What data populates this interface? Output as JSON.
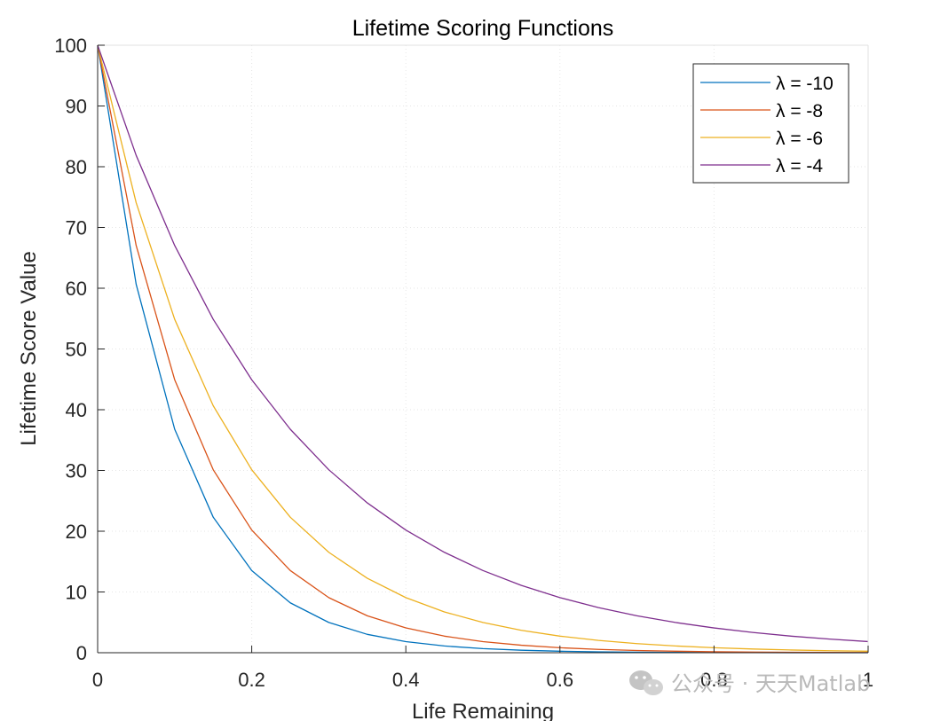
{
  "chart_data": {
    "type": "line",
    "title": "Lifetime Scoring Functions",
    "xlabel": "Life Remaining",
    "ylabel": "Lifetime Score Value",
    "xlim": [
      0,
      1
    ],
    "ylim": [
      0,
      100
    ],
    "xticks": [
      0,
      0.2,
      0.4,
      0.6,
      0.8,
      1
    ],
    "xtick_labels": [
      "0",
      "0.2",
      "0.4",
      "0.6",
      "0.8",
      "1"
    ],
    "yticks": [
      0,
      10,
      20,
      30,
      40,
      50,
      60,
      70,
      80,
      90,
      100
    ],
    "ytick_labels": [
      "0",
      "10",
      "20",
      "30",
      "40",
      "50",
      "60",
      "70",
      "80",
      "90",
      "100"
    ],
    "grid": true,
    "legend_position": "top-right",
    "x": [
      0,
      0.05,
      0.1,
      0.15,
      0.2,
      0.25,
      0.3,
      0.35,
      0.4,
      0.45,
      0.5,
      0.55,
      0.6,
      0.65,
      0.7,
      0.75,
      0.8,
      0.85,
      0.9,
      0.95,
      1
    ],
    "series": [
      {
        "name": "λ = -10",
        "color": "#0072BD",
        "values": [
          100,
          60.65,
          36.79,
          22.31,
          13.53,
          8.21,
          4.98,
          3.02,
          1.83,
          1.11,
          0.67,
          0.41,
          0.25,
          0.15,
          0.09,
          0.06,
          0.03,
          0.02,
          0.01,
          0.01,
          0.0
        ]
      },
      {
        "name": "λ = -8",
        "color": "#D95319",
        "values": [
          100,
          67.03,
          44.93,
          30.12,
          20.19,
          13.53,
          9.07,
          6.08,
          4.08,
          2.73,
          1.83,
          1.23,
          0.82,
          0.55,
          0.37,
          0.25,
          0.17,
          0.11,
          0.07,
          0.05,
          0.03
        ]
      },
      {
        "name": "λ = -6",
        "color": "#EDB120",
        "values": [
          100,
          74.08,
          54.88,
          40.66,
          30.12,
          22.31,
          16.53,
          12.25,
          9.07,
          6.72,
          4.98,
          3.69,
          2.73,
          2.02,
          1.5,
          1.11,
          0.82,
          0.61,
          0.45,
          0.33,
          0.25
        ]
      },
      {
        "name": "λ = -4",
        "color": "#7E2F8E",
        "values": [
          100,
          81.87,
          67.03,
          54.88,
          44.93,
          36.79,
          30.12,
          24.66,
          20.19,
          16.53,
          13.53,
          11.08,
          9.07,
          7.43,
          6.08,
          4.98,
          4.08,
          3.34,
          2.73,
          2.24,
          1.83
        ]
      }
    ]
  },
  "watermark": {
    "text": "公众号 · 天天Matlab",
    "icon": "wechat-icon"
  }
}
